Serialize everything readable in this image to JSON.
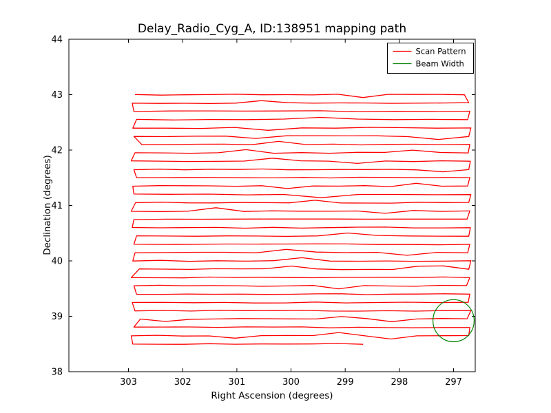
{
  "window": {
    "background": "#ffffff"
  },
  "chart_data": {
    "type": "line",
    "title": "Delay_Radio_Cyg_A, ID:138951 mapping path",
    "xlabel": "Right Ascension (degrees)",
    "ylabel": "Declination (degrees)",
    "xlim": [
      304.1,
      296.6
    ],
    "ylim": [
      38,
      44
    ],
    "x_axis_inverted": true,
    "grid": false,
    "xticks": [
      303,
      302,
      301,
      300,
      299,
      298,
      297
    ],
    "yticks": [
      38,
      39,
      40,
      41,
      42,
      43,
      44
    ],
    "legend": {
      "position": "upper right",
      "entries": [
        {
          "label": "Scan Pattern",
          "color": "#ff0000"
        },
        {
          "label": "Beam Width",
          "color": "#008000"
        }
      ]
    },
    "scan": {
      "name": "Scan Pattern",
      "color": "#ff0000",
      "seed": 7,
      "pattern": "boustrophedon raster, start bottom, alternating left-right",
      "row_step_deg": 0.15,
      "rows": [
        {
          "dec": 38.5,
          "ra_left": 302.92,
          "ra_right": 298.67
        },
        {
          "dec": 38.65,
          "ra_left": 302.95,
          "ra_right": 296.72
        },
        {
          "dec": 38.8,
          "ra_left": 302.9,
          "ra_right": 296.7
        },
        {
          "dec": 38.95,
          "ra_left": 302.78,
          "ra_right": 296.75
        },
        {
          "dec": 39.1,
          "ra_left": 302.88,
          "ra_right": 296.68
        },
        {
          "dec": 39.25,
          "ra_left": 302.93,
          "ra_right": 296.73
        },
        {
          "dec": 39.4,
          "ra_left": 302.85,
          "ra_right": 296.7
        },
        {
          "dec": 39.55,
          "ra_left": 302.9,
          "ra_right": 296.76
        },
        {
          "dec": 39.7,
          "ra_left": 302.95,
          "ra_right": 296.7
        },
        {
          "dec": 39.85,
          "ra_left": 302.8,
          "ra_right": 296.72
        },
        {
          "dec": 40.0,
          "ra_left": 302.92,
          "ra_right": 296.68
        },
        {
          "dec": 40.15,
          "ra_left": 302.88,
          "ra_right": 296.74
        },
        {
          "dec": 40.3,
          "ra_left": 302.9,
          "ra_right": 296.7
        },
        {
          "dec": 40.45,
          "ra_left": 302.85,
          "ra_right": 296.72
        },
        {
          "dec": 40.6,
          "ra_left": 302.93,
          "ra_right": 296.69
        },
        {
          "dec": 40.75,
          "ra_left": 302.9,
          "ra_right": 296.75
        },
        {
          "dec": 40.9,
          "ra_left": 302.95,
          "ra_right": 296.7
        },
        {
          "dec": 41.05,
          "ra_left": 302.87,
          "ra_right": 296.72
        },
        {
          "dec": 41.2,
          "ra_left": 302.9,
          "ra_right": 296.68
        },
        {
          "dec": 41.35,
          "ra_left": 302.92,
          "ra_right": 296.74
        },
        {
          "dec": 41.5,
          "ra_left": 302.85,
          "ra_right": 296.7
        },
        {
          "dec": 41.65,
          "ra_left": 302.9,
          "ra_right": 296.72
        },
        {
          "dec": 41.8,
          "ra_left": 302.95,
          "ra_right": 296.69
        },
        {
          "dec": 41.95,
          "ra_left": 302.88,
          "ra_right": 296.73
        },
        {
          "dec": 42.1,
          "ra_left": 302.75,
          "ra_right": 296.7
        },
        {
          "dec": 42.25,
          "ra_left": 302.9,
          "ra_right": 296.72
        },
        {
          "dec": 42.4,
          "ra_left": 302.92,
          "ra_right": 296.68
        },
        {
          "dec": 42.55,
          "ra_left": 302.85,
          "ra_right": 296.74
        },
        {
          "dec": 42.7,
          "ra_left": 302.9,
          "ra_right": 296.7
        },
        {
          "dec": 42.85,
          "ra_left": 302.93,
          "ra_right": 296.72
        },
        {
          "dec": 43.0,
          "ra_left": 302.88,
          "ra_right": 296.8
        }
      ]
    },
    "beam": {
      "name": "Beam Width",
      "color": "#008000",
      "center_ra": 297.0,
      "center_dec": 38.92,
      "radius_deg": 0.38
    }
  }
}
